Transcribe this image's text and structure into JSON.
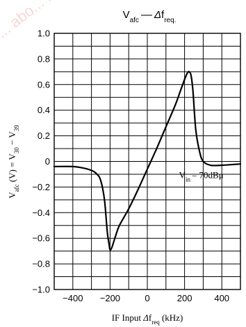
{
  "watermark": "... abo... ...con.panason...",
  "chart_data": {
    "type": "line",
    "title": "V_afc—Δf_req.",
    "title_parts": {
      "main": "V",
      "sub1": "afc",
      "dash": "—",
      "delta": "Δ",
      "f": "f",
      "sub2": "req."
    },
    "xlabel": "IF Input Δf_req (kHz)",
    "xlabel_parts": {
      "pre": "IF Input ",
      "delta": "Δ",
      "f": "f",
      "sub": "req",
      "post": " (kHz)"
    },
    "ylabel": "V_afc (V) = V_30 − V_39",
    "ylabel_parts": {
      "v1": "V",
      "s1": "afc",
      "mid": " (V) = V",
      "s2": "30",
      "minus": " − V",
      "s3": "39"
    },
    "xlim": [
      -500,
      500
    ],
    "ylim": [
      -1.0,
      1.0
    ],
    "x_ticks": [
      -400,
      -200,
      0,
      200,
      400
    ],
    "x_tick_labels": [
      "−400",
      "−200",
      "0",
      "200",
      "400"
    ],
    "y_ticks": [
      1.0,
      0.8,
      0.6,
      0.4,
      0.2,
      0,
      -0.2,
      -0.4,
      -0.6,
      -0.8,
      -1.0
    ],
    "y_tick_labels": [
      "1.0",
      "0.8",
      "0.6",
      "0.4",
      "0.2",
      "0",
      "−0.2",
      "−0.4",
      "−0.6",
      "−0.8",
      "−1.0"
    ],
    "x_grid_step": 100,
    "y_grid_step": 0.1,
    "grid": true,
    "annotation": "V_in = 70dBμ",
    "annotation_parts": {
      "v": "V",
      "sub": "in",
      "rest": "= 70dBμ"
    },
    "annotation_at": {
      "x": 170,
      "y": -0.13
    },
    "series": [
      {
        "x": [
          -500,
          -400,
          -350,
          -300,
          -270,
          -250,
          -230,
          -215,
          -205,
          -200,
          -190,
          -170,
          -150,
          -100,
          -50,
          0,
          50,
          100,
          150,
          180,
          200,
          215,
          225,
          235,
          245,
          260,
          280,
          300,
          340,
          400,
          500
        ],
        "values": [
          -0.04,
          -0.04,
          -0.05,
          -0.07,
          -0.1,
          -0.15,
          -0.3,
          -0.55,
          -0.65,
          -0.69,
          -0.67,
          -0.58,
          -0.5,
          -0.37,
          -0.22,
          -0.06,
          0.1,
          0.27,
          0.44,
          0.56,
          0.64,
          0.69,
          0.7,
          0.67,
          0.55,
          0.25,
          0.08,
          0.0,
          -0.03,
          -0.03,
          -0.02
        ]
      }
    ]
  }
}
